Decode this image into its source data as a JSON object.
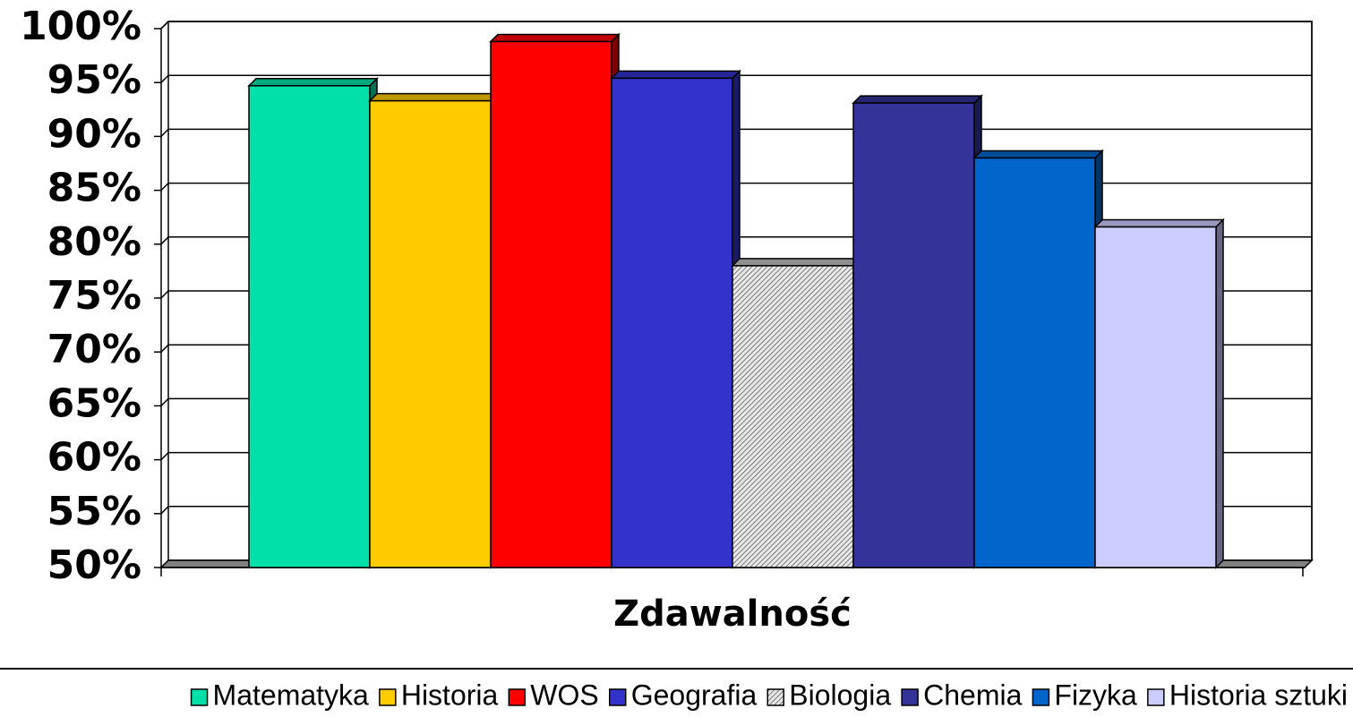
{
  "chart_data": {
    "type": "bar3d",
    "categories": [
      "Zdawalność"
    ],
    "ylim": [
      50,
      100
    ],
    "yticks": [
      {
        "value": 50,
        "label": "50%"
      },
      {
        "value": 55,
        "label": "55%"
      },
      {
        "value": 60,
        "label": "60%"
      },
      {
        "value": 65,
        "label": "65%"
      },
      {
        "value": 70,
        "label": "70%"
      },
      {
        "value": 75,
        "label": "75%"
      },
      {
        "value": 80,
        "label": "80%"
      },
      {
        "value": 85,
        "label": "85%"
      },
      {
        "value": 90,
        "label": "90%"
      },
      {
        "value": 95,
        "label": "95%"
      },
      {
        "value": 100,
        "label": "100%"
      }
    ],
    "grid": true,
    "legend": "bottom",
    "series": [
      {
        "name": "Matematyka",
        "color": "#00e0a8",
        "values": [
          94.7
        ]
      },
      {
        "name": "Historia",
        "color": "#ffcc00",
        "values": [
          93.3
        ]
      },
      {
        "name": "WOS",
        "color": "#ff0000",
        "values": [
          98.8
        ]
      },
      {
        "name": "Geografia",
        "color": "#3333cc",
        "values": [
          95.4
        ]
      },
      {
        "name": "Biologia",
        "color": "#c0c0c0",
        "pattern": "hatch",
        "values": [
          78.0
        ]
      },
      {
        "name": "Chemia",
        "color": "#333399",
        "values": [
          93.1
        ]
      },
      {
        "name": "Fizyka",
        "color": "#0066cc",
        "values": [
          88.0
        ]
      },
      {
        "name": "Historia sztuki",
        "color": "#ccccff",
        "values": [
          81.6
        ]
      }
    ]
  }
}
